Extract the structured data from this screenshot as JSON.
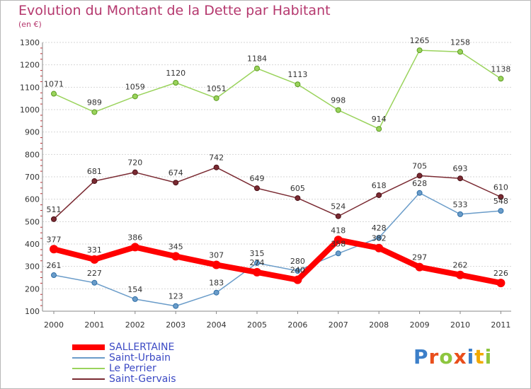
{
  "chart_data": {
    "type": "line",
    "title": "Evolution du Montant de la Dette par Habitant",
    "subtitle": "(en €)",
    "categories": [
      "2000",
      "2001",
      "2002",
      "2003",
      "2004",
      "2005",
      "2006",
      "2007",
      "2008",
      "2009",
      "2010",
      "2011"
    ],
    "ylim": [
      100,
      1300
    ],
    "y_ticks": [
      "100",
      "200",
      "300",
      "400",
      "500",
      "600",
      "700",
      "800",
      "900",
      "1000",
      "1100",
      "1200",
      "1300"
    ],
    "grid": "horizontal",
    "legend_position": "bottom-left",
    "series": [
      {
        "name": "Saint-Urbain",
        "color": "#6a9cc9",
        "values": [
          261,
          227,
          154,
          123,
          183,
          315,
          280,
          358,
          428,
          628,
          533,
          548
        ],
        "labels": [
          "261",
          "227",
          "154",
          "123",
          "183",
          "315",
          "280",
          "358",
          "428",
          "628",
          "533",
          "548"
        ]
      },
      {
        "name": "Le Perrier",
        "color": "#9ad35c",
        "values": [
          1071,
          989,
          1059,
          1120,
          1051,
          1184,
          1113,
          998,
          914,
          1265,
          1258,
          1138
        ],
        "labels": [
          "1071",
          "989",
          "1059",
          "1120",
          "1051",
          "1184",
          "1113",
          "998",
          "914",
          "1265",
          "1258",
          "1138"
        ]
      },
      {
        "name": "Saint-Gervais",
        "color": "#7a2a32",
        "values": [
          511,
          681,
          720,
          674,
          742,
          649,
          605,
          524,
          618,
          705,
          693,
          610
        ],
        "labels": [
          "511",
          "681",
          "720",
          "674",
          "742",
          "649",
          "605",
          "524",
          "618",
          "705",
          "693",
          "610"
        ]
      },
      {
        "name": "SALLERTAINE",
        "color": "#ff0000",
        "values": [
          377,
          331,
          386,
          345,
          307,
          274,
          240,
          418,
          382,
          297,
          262,
          226
        ],
        "labels": [
          "377",
          "331",
          "386",
          "345",
          "307",
          "274",
          "240",
          "418",
          "382",
          "297",
          "262",
          "226"
        ]
      }
    ]
  },
  "legend": {
    "items": [
      {
        "name": "SALLERTAINE",
        "color": "#ff0000"
      },
      {
        "name": "Saint-Urbain",
        "color": "#6a9cc9"
      },
      {
        "name": "Le Perrier",
        "color": "#9ad35c"
      },
      {
        "name": "Saint-Gervais",
        "color": "#7a2a32"
      }
    ]
  },
  "logo": {
    "text": "Proxiti",
    "letter_colors": [
      "#3c7fc9",
      "#e94e1b",
      "#8dc63f",
      "#e94e1b",
      "#3c7fc9",
      "#f2a900",
      "#8dc63f"
    ]
  }
}
